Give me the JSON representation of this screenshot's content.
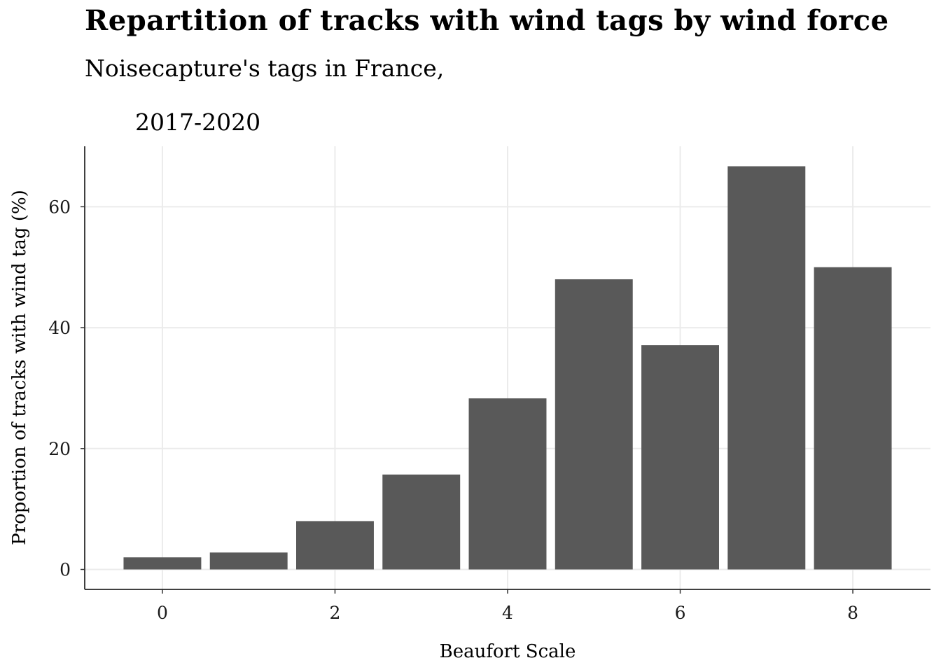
{
  "chart_data": {
    "type": "bar",
    "title": "Repartition of tracks with wind tags by wind force",
    "subtitle": "Noisecapture's tags in France,",
    "subtitle_line2": "2017-2020",
    "xlabel": "Beaufort Scale",
    "ylabel": "Proportion of tracks with wind tag (%)",
    "categories": [
      0,
      1,
      2,
      3,
      4,
      5,
      6,
      7,
      8
    ],
    "values": [
      2.0,
      2.8,
      8.0,
      15.7,
      28.3,
      48.0,
      37.1,
      66.7,
      50.0
    ],
    "xticks": [
      "0",
      "2",
      "4",
      "6",
      "8"
    ],
    "yticks": [
      "0",
      "20",
      "40",
      "60"
    ],
    "xlim": [
      -0.9,
      8.9
    ],
    "ylim": [
      -3.3,
      70
    ],
    "grid": true,
    "bar_color": "#595959",
    "grid_color": "#ebebeb"
  }
}
